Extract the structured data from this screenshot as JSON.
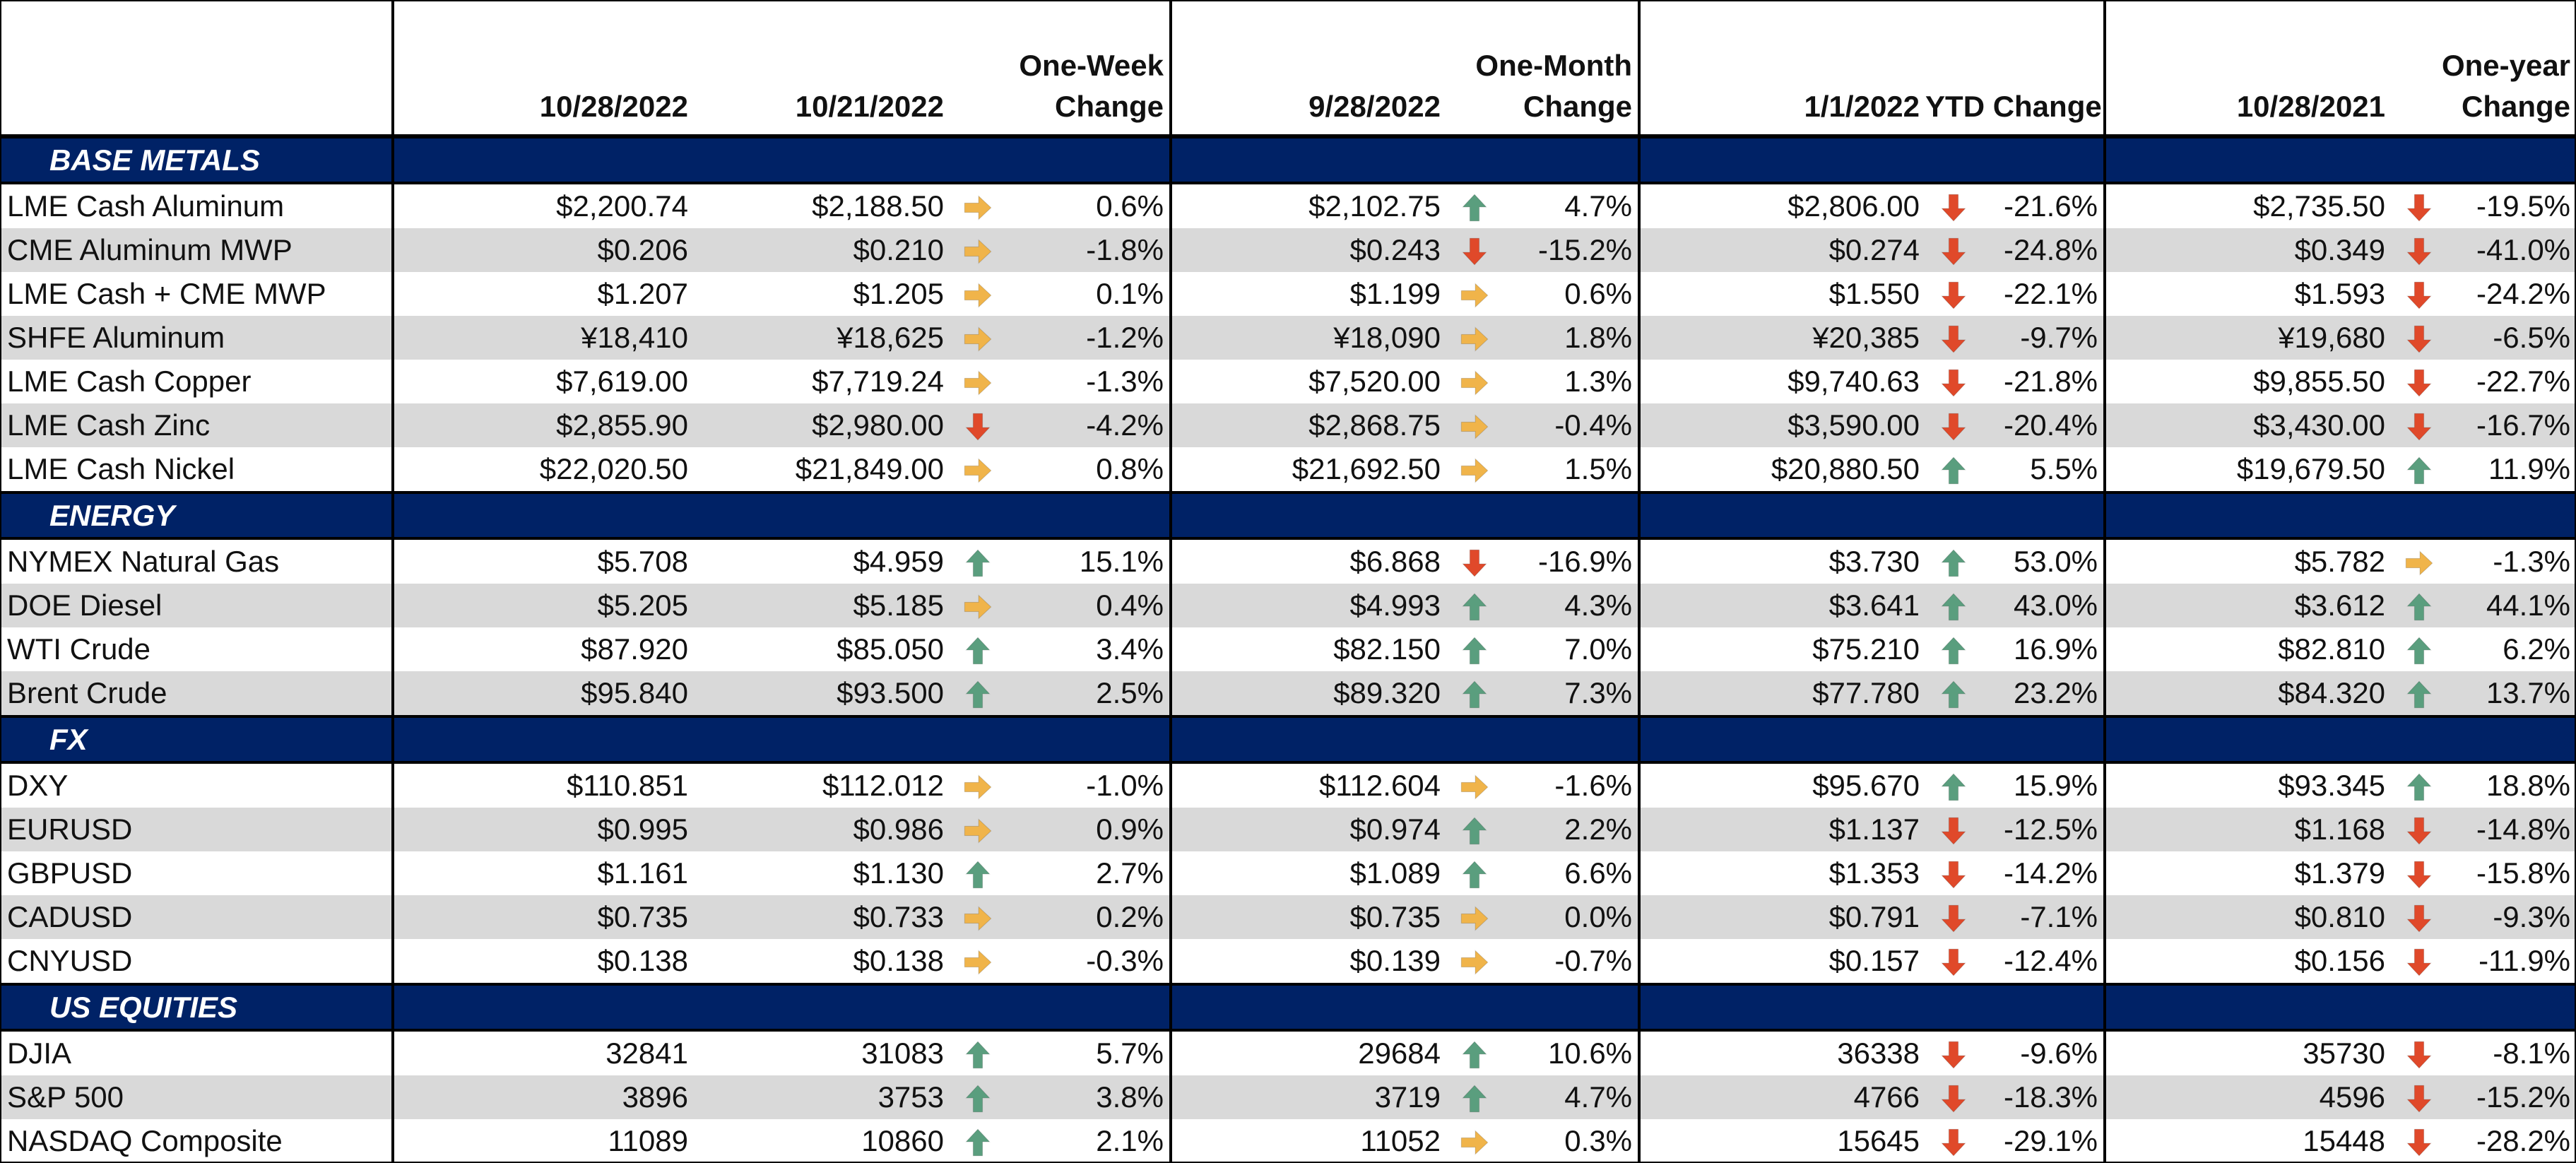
{
  "colors": {
    "header_band": "#002266",
    "zebra": "#d9d9d9",
    "arrow_up": "#5a9e7e",
    "arrow_down": "#e0492a",
    "arrow_right": "#f0b44a"
  },
  "headers": {
    "c1": "10/28/2022",
    "c2": "10/21/2022",
    "c3a": "One-Week",
    "c3b": "Change",
    "c4": "9/28/2022",
    "c5a": "One-Month",
    "c5b": "Change",
    "c6": "1/1/2022",
    "c7": "YTD Change",
    "c8": "10/28/2021",
    "c9a": "One-year",
    "c9b": "Change"
  },
  "sections": [
    {
      "title": "BASE METALS",
      "rows": [
        {
          "name": "LME Cash Aluminum",
          "cur": "$2,200.74",
          "w": "$2,188.50",
          "wa": "right",
          "wc": "0.6%",
          "m": "$2,102.75",
          "ma": "up",
          "mc": "4.7%",
          "y": "$2,806.00",
          "ya": "down",
          "yc": "-21.6%",
          "o": "$2,735.50",
          "oa": "down",
          "oc": "-19.5%"
        },
        {
          "name": "CME Aluminum MWP",
          "cur": "$0.206",
          "w": "$0.210",
          "wa": "right",
          "wc": "-1.8%",
          "m": "$0.243",
          "ma": "down",
          "mc": "-15.2%",
          "y": "$0.274",
          "ya": "down",
          "yc": "-24.8%",
          "o": "$0.349",
          "oa": "down",
          "oc": "-41.0%"
        },
        {
          "name": "LME Cash + CME MWP",
          "cur": "$1.207",
          "w": "$1.205",
          "wa": "right",
          "wc": "0.1%",
          "m": "$1.199",
          "ma": "right",
          "mc": "0.6%",
          "y": "$1.550",
          "ya": "down",
          "yc": "-22.1%",
          "o": "$1.593",
          "oa": "down",
          "oc": "-24.2%"
        },
        {
          "name": "SHFE Aluminum",
          "cur": "¥18,410",
          "w": "¥18,625",
          "wa": "right",
          "wc": "-1.2%",
          "m": "¥18,090",
          "ma": "right",
          "mc": "1.8%",
          "y": "¥20,385",
          "ya": "down",
          "yc": "-9.7%",
          "o": "¥19,680",
          "oa": "down",
          "oc": "-6.5%"
        },
        {
          "name": "LME Cash Copper",
          "cur": "$7,619.00",
          "w": "$7,719.24",
          "wa": "right",
          "wc": "-1.3%",
          "m": "$7,520.00",
          "ma": "right",
          "mc": "1.3%",
          "y": "$9,740.63",
          "ya": "down",
          "yc": "-21.8%",
          "o": "$9,855.50",
          "oa": "down",
          "oc": "-22.7%"
        },
        {
          "name": "LME Cash Zinc",
          "cur": "$2,855.90",
          "w": "$2,980.00",
          "wa": "down",
          "wc": "-4.2%",
          "m": "$2,868.75",
          "ma": "right",
          "mc": "-0.4%",
          "y": "$3,590.00",
          "ya": "down",
          "yc": "-20.4%",
          "o": "$3,430.00",
          "oa": "down",
          "oc": "-16.7%"
        },
        {
          "name": "LME Cash Nickel",
          "cur": "$22,020.50",
          "w": "$21,849.00",
          "wa": "right",
          "wc": "0.8%",
          "m": "$21,692.50",
          "ma": "right",
          "mc": "1.5%",
          "y": "$20,880.50",
          "ya": "up",
          "yc": "5.5%",
          "o": "$19,679.50",
          "oa": "up",
          "oc": "11.9%"
        }
      ]
    },
    {
      "title": "ENERGY",
      "rows": [
        {
          "name": "NYMEX Natural Gas",
          "cur": "$5.708",
          "w": "$4.959",
          "wa": "up",
          "wc": "15.1%",
          "m": "$6.868",
          "ma": "down",
          "mc": "-16.9%",
          "y": "$3.730",
          "ya": "up",
          "yc": "53.0%",
          "o": "$5.782",
          "oa": "right",
          "oc": "-1.3%"
        },
        {
          "name": "DOE Diesel",
          "cur": "$5.205",
          "w": "$5.185",
          "wa": "right",
          "wc": "0.4%",
          "m": "$4.993",
          "ma": "up",
          "mc": "4.3%",
          "y": "$3.641",
          "ya": "up",
          "yc": "43.0%",
          "o": "$3.612",
          "oa": "up",
          "oc": "44.1%"
        },
        {
          "name": "WTI Crude",
          "cur": "$87.920",
          "w": "$85.050",
          "wa": "up",
          "wc": "3.4%",
          "m": "$82.150",
          "ma": "up",
          "mc": "7.0%",
          "y": "$75.210",
          "ya": "up",
          "yc": "16.9%",
          "o": "$82.810",
          "oa": "up",
          "oc": "6.2%"
        },
        {
          "name": "Brent Crude",
          "cur": "$95.840",
          "w": "$93.500",
          "wa": "up",
          "wc": "2.5%",
          "m": "$89.320",
          "ma": "up",
          "mc": "7.3%",
          "y": "$77.780",
          "ya": "up",
          "yc": "23.2%",
          "o": "$84.320",
          "oa": "up",
          "oc": "13.7%"
        }
      ]
    },
    {
      "title": "FX",
      "rows": [
        {
          "name": "DXY",
          "cur": "$110.851",
          "w": "$112.012",
          "wa": "right",
          "wc": "-1.0%",
          "m": "$112.604",
          "ma": "right",
          "mc": "-1.6%",
          "y": "$95.670",
          "ya": "up",
          "yc": "15.9%",
          "o": "$93.345",
          "oa": "up",
          "oc": "18.8%"
        },
        {
          "name": "EURUSD",
          "cur": "$0.995",
          "w": "$0.986",
          "wa": "right",
          "wc": "0.9%",
          "m": "$0.974",
          "ma": "up",
          "mc": "2.2%",
          "y": "$1.137",
          "ya": "down",
          "yc": "-12.5%",
          "o": "$1.168",
          "oa": "down",
          "oc": "-14.8%"
        },
        {
          "name": "GBPUSD",
          "cur": "$1.161",
          "w": "$1.130",
          "wa": "up",
          "wc": "2.7%",
          "m": "$1.089",
          "ma": "up",
          "mc": "6.6%",
          "y": "$1.353",
          "ya": "down",
          "yc": "-14.2%",
          "o": "$1.379",
          "oa": "down",
          "oc": "-15.8%"
        },
        {
          "name": "CADUSD",
          "cur": "$0.735",
          "w": "$0.733",
          "wa": "right",
          "wc": "0.2%",
          "m": "$0.735",
          "ma": "right",
          "mc": "0.0%",
          "y": "$0.791",
          "ya": "down",
          "yc": "-7.1%",
          "o": "$0.810",
          "oa": "down",
          "oc": "-9.3%"
        },
        {
          "name": "CNYUSD",
          "cur": "$0.138",
          "w": "$0.138",
          "wa": "right",
          "wc": "-0.3%",
          "m": "$0.139",
          "ma": "right",
          "mc": "-0.7%",
          "y": "$0.157",
          "ya": "down",
          "yc": "-12.4%",
          "o": "$0.156",
          "oa": "down",
          "oc": "-11.9%"
        }
      ]
    },
    {
      "title": "US EQUITIES",
      "rows": [
        {
          "name": "DJIA",
          "cur": "32841",
          "w": "31083",
          "wa": "up",
          "wc": "5.7%",
          "m": "29684",
          "ma": "up",
          "mc": "10.6%",
          "y": "36338",
          "ya": "down",
          "yc": "-9.6%",
          "o": "35730",
          "oa": "down",
          "oc": "-8.1%"
        },
        {
          "name": "S&P 500",
          "cur": "3896",
          "w": "3753",
          "wa": "up",
          "wc": "3.8%",
          "m": "3719",
          "ma": "up",
          "mc": "4.7%",
          "y": "4766",
          "ya": "down",
          "yc": "-18.3%",
          "o": "4596",
          "oa": "down",
          "oc": "-15.2%"
        },
        {
          "name": "NASDAQ Composite",
          "cur": "11089",
          "w": "10860",
          "wa": "up",
          "wc": "2.1%",
          "m": "11052",
          "ma": "right",
          "mc": "0.3%",
          "y": "15645",
          "ya": "down",
          "yc": "-29.1%",
          "o": "15448",
          "oa": "down",
          "oc": "-28.2%"
        }
      ]
    }
  ]
}
